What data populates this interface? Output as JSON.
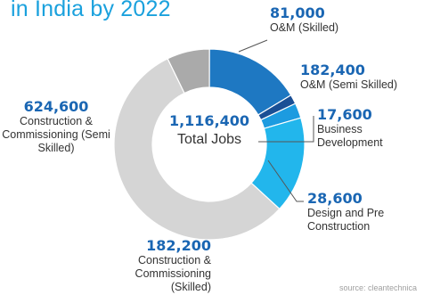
{
  "title": "in India by 2022",
  "source": "source: cleantechnica",
  "center": {
    "value": "1,116,400",
    "caption": "Total Jobs"
  },
  "chart_data": {
    "type": "pie",
    "donut": true,
    "title": "in India by 2022",
    "total": 1116400,
    "slices": [
      {
        "label": "O&M (Skilled)",
        "value_text": "81,000",
        "value": 81000,
        "color": "#aaaaaa"
      },
      {
        "label": "O&M (Semi Skilled)",
        "value_text": "182,400",
        "value": 182400,
        "color": "#1e78c2"
      },
      {
        "label": "Business Development",
        "value_text": "17,600",
        "value": 17600,
        "color": "#1a4f95"
      },
      {
        "label": "Design and Pre Construction",
        "value_text": "28,600",
        "value": 28600,
        "color": "#1c9be0"
      },
      {
        "label": "Construction & Commissioning (Skilled)",
        "value_text": "182,200",
        "value": 182200,
        "color": "#22b6ec"
      },
      {
        "label": "Construction & Commissioning (Semi Skilled)",
        "value_text": "624,600",
        "value": 624600,
        "color": "#d5d5d5"
      }
    ]
  }
}
